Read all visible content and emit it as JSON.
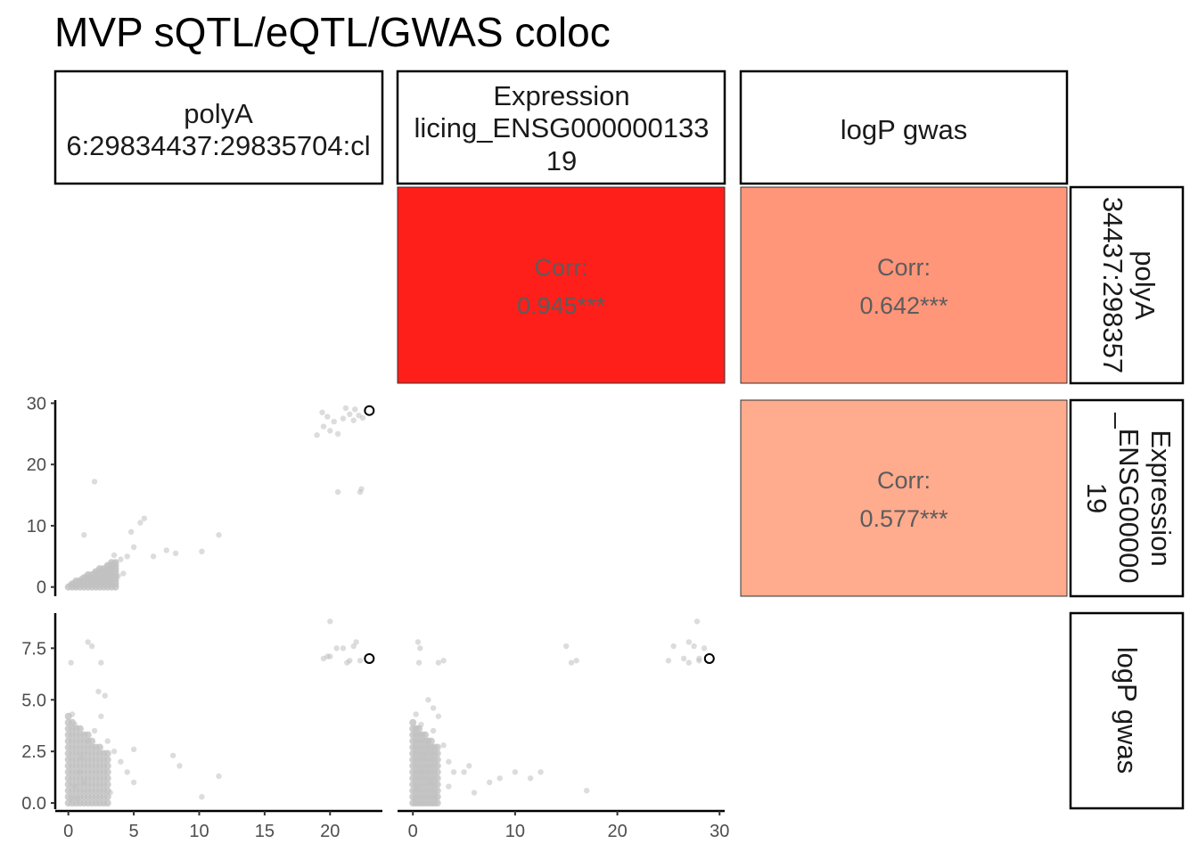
{
  "title": "MVP sQTL/eQTL/GWAS coloc",
  "strips": {
    "columns": [
      [
        "polyA",
        "6:29834437:29835704:cl"
      ],
      [
        "Expression",
        "licing_ENSG000000133",
        "19"
      ],
      [
        "logP gwas"
      ]
    ],
    "rows": [
      [
        "polyA",
        "34437:298357"
      ],
      [
        "Expression",
        "_ENSG00000",
        "19"
      ],
      [
        "logP gwas"
      ]
    ]
  },
  "colors": {
    "corr_high": "#ff1f1a",
    "corr_mid": "#ff967a",
    "corr_low": "#ffab8d",
    "point": "#c0c0c0",
    "highlight_stroke": "#000000",
    "corr_text": "#5c5c5c"
  },
  "chart_data": {
    "type": "scatter",
    "variables": [
      "polyA",
      "Expression",
      "logP gwas"
    ],
    "correlations": [
      {
        "row": "polyA",
        "col": "Expression",
        "label": "Corr:",
        "value": "0.945***",
        "color": "#ff1f1a"
      },
      {
        "row": "polyA",
        "col": "logP gwas",
        "label": "Corr:",
        "value": "0.642***",
        "color": "#ff967a"
      },
      {
        "row": "Expression",
        "col": "logP gwas",
        "label": "Corr:",
        "value": "0.577***",
        "color": "#ffab8d"
      }
    ],
    "axes": {
      "polyA": {
        "range": [
          -1,
          24
        ],
        "ticks": [
          0,
          5,
          10,
          15,
          20
        ],
        "tick_labels": [
          "0",
          "5",
          "10",
          "15",
          "20"
        ]
      },
      "Expression": {
        "range": [
          -1.5,
          30.5
        ],
        "ticks": [
          0,
          10,
          20,
          30
        ],
        "tick_labels": [
          "0",
          "10",
          "20",
          "30"
        ]
      },
      "logP gwas": {
        "range": [
          -0.3,
          9.2
        ],
        "ticks": [
          0,
          2.5,
          5,
          7.5
        ],
        "tick_labels": [
          "0.0",
          "2.5",
          "5.0",
          "7.5"
        ]
      }
    },
    "panels": [
      {
        "row": "Expression",
        "col": "polyA",
        "points": [
          [
            0.1,
            0.3
          ],
          [
            0.3,
            0.5
          ],
          [
            0.5,
            0.8
          ],
          [
            0.8,
            1.0
          ],
          [
            1.0,
            1.4
          ],
          [
            1.3,
            1.7
          ],
          [
            1.6,
            2.0
          ],
          [
            2.0,
            2.4
          ],
          [
            2.3,
            2.8
          ],
          [
            2.6,
            3.0
          ],
          [
            3.0,
            3.5
          ],
          [
            3.3,
            3.8
          ],
          [
            3.6,
            4.0
          ],
          [
            4.0,
            4.5
          ],
          [
            4.5,
            5.0
          ],
          [
            5.0,
            6.5
          ],
          [
            5.5,
            10.5
          ],
          [
            5.8,
            11.2
          ],
          [
            4.8,
            9.0
          ],
          [
            2.0,
            17.2
          ],
          [
            1.2,
            8.5
          ],
          [
            3.5,
            5.2
          ],
          [
            6.5,
            5.0
          ],
          [
            7.5,
            6.0
          ],
          [
            8.2,
            5.5
          ],
          [
            10.2,
            5.8
          ],
          [
            11.5,
            8.5
          ],
          [
            2.5,
            0.5
          ],
          [
            3.8,
            1.8
          ],
          [
            4.2,
            2.2
          ],
          [
            1.5,
            0.3
          ],
          [
            0.5,
            0.1
          ],
          [
            0.9,
            0.4
          ],
          [
            1.8,
            1.2
          ],
          [
            2.8,
            2.0
          ],
          [
            19.0,
            24.8
          ],
          [
            19.5,
            26.2
          ],
          [
            20.0,
            25.5
          ],
          [
            20.3,
            27.0
          ],
          [
            19.8,
            27.8
          ],
          [
            21.0,
            27.5
          ],
          [
            21.5,
            28.2
          ],
          [
            21.8,
            27.2
          ],
          [
            22.2,
            28.0
          ],
          [
            22.5,
            27.6
          ],
          [
            21.2,
            29.2
          ],
          [
            21.9,
            29.0
          ],
          [
            20.6,
            25.0
          ],
          [
            20.6,
            15.5
          ],
          [
            22.3,
            15.5
          ],
          [
            22.4,
            16.0
          ],
          [
            19.4,
            28.5
          ]
        ],
        "highlight": [
          23.0,
          28.8
        ]
      },
      {
        "row": "logP gwas",
        "col": "polyA",
        "points": [
          [
            0.2,
            0.2
          ],
          [
            0.5,
            0.8
          ],
          [
            0.8,
            1.5
          ],
          [
            1.0,
            2.2
          ],
          [
            1.5,
            3.0
          ],
          [
            2.0,
            3.5
          ],
          [
            2.5,
            4.2
          ],
          [
            3.0,
            3.0
          ],
          [
            3.5,
            2.5
          ],
          [
            4.0,
            2.0
          ],
          [
            4.5,
            1.5
          ],
          [
            5.0,
            1.0
          ],
          [
            0.3,
            4.3
          ],
          [
            0.5,
            3.8
          ],
          [
            2.3,
            5.4
          ],
          [
            2.8,
            5.2
          ],
          [
            1.5,
            7.8
          ],
          [
            1.8,
            7.6
          ],
          [
            0.2,
            6.8
          ],
          [
            2.5,
            6.8
          ],
          [
            5.0,
            2.6
          ],
          [
            8.0,
            2.3
          ],
          [
            8.5,
            1.8
          ],
          [
            10.2,
            0.3
          ],
          [
            11.5,
            1.3
          ],
          [
            3.2,
            0.5
          ],
          [
            1.2,
            1.0
          ],
          [
            0.7,
            0.2
          ],
          [
            19.5,
            7.0
          ],
          [
            20.0,
            7.1
          ],
          [
            20.5,
            7.5
          ],
          [
            21.0,
            7.5
          ],
          [
            21.5,
            6.9
          ],
          [
            21.8,
            7.6
          ],
          [
            22.0,
            7.8
          ],
          [
            21.3,
            6.8
          ],
          [
            20.0,
            8.8
          ],
          [
            22.3,
            6.9
          ],
          [
            19.8,
            7.1
          ]
        ],
        "highlight": [
          23.0,
          7.0
        ]
      },
      {
        "row": "logP gwas",
        "col": "Expression",
        "points": [
          [
            0.2,
            0.2
          ],
          [
            0.5,
            0.8
          ],
          [
            0.8,
            1.5
          ],
          [
            1.0,
            2.2
          ],
          [
            1.5,
            3.0
          ],
          [
            2.0,
            3.5
          ],
          [
            2.5,
            4.2
          ],
          [
            3.0,
            2.8
          ],
          [
            3.5,
            2.0
          ],
          [
            4.0,
            1.5
          ],
          [
            0.3,
            4.3
          ],
          [
            0.8,
            3.8
          ],
          [
            1.5,
            5.0
          ],
          [
            2.0,
            4.6
          ],
          [
            0.5,
            7.8
          ],
          [
            0.7,
            7.5
          ],
          [
            0.6,
            6.8
          ],
          [
            2.5,
            6.8
          ],
          [
            3.0,
            6.9
          ],
          [
            3.5,
            0.8
          ],
          [
            5.0,
            1.5
          ],
          [
            5.5,
            1.8
          ],
          [
            6.0,
            0.5
          ],
          [
            7.5,
            1.0
          ],
          [
            8.5,
            1.2
          ],
          [
            10.0,
            1.5
          ],
          [
            11.5,
            1.2
          ],
          [
            12.5,
            1.5
          ],
          [
            17.0,
            0.6
          ],
          [
            1.8,
            1.0
          ],
          [
            2.2,
            0.3
          ],
          [
            15.0,
            7.6
          ],
          [
            15.5,
            6.8
          ],
          [
            16.0,
            6.9
          ],
          [
            25.0,
            6.9
          ],
          [
            25.5,
            7.6
          ],
          [
            26.5,
            7.0
          ],
          [
            27.0,
            7.8
          ],
          [
            27.5,
            7.6
          ],
          [
            28.0,
            6.9
          ],
          [
            27.0,
            6.8
          ],
          [
            28.5,
            7.5
          ],
          [
            27.8,
            8.8
          ],
          [
            28.0,
            7.0
          ]
        ],
        "highlight": [
          29.0,
          7.0
        ]
      }
    ],
    "grid": false
  }
}
